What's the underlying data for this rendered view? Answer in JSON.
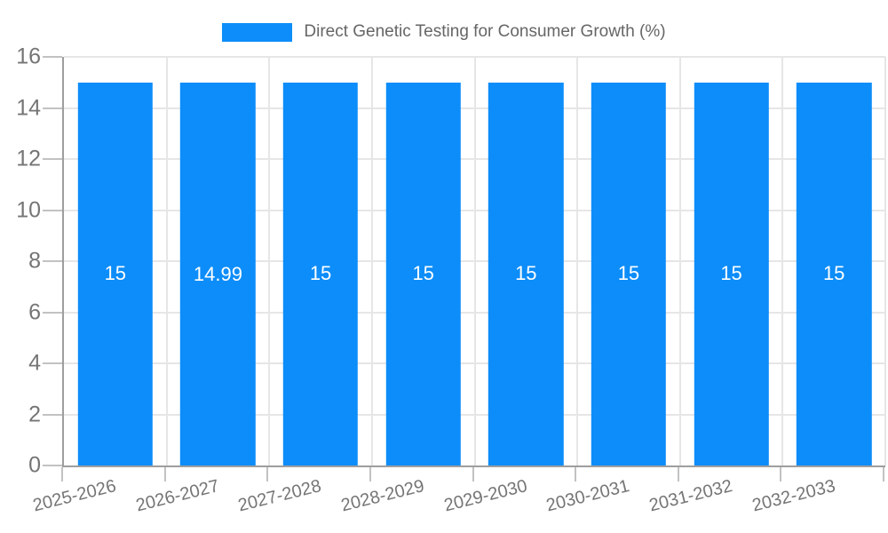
{
  "legend": {
    "label": "Direct Genetic Testing for Consumer Growth (%)",
    "swatch_color": "#0d8df9"
  },
  "chart_data": {
    "type": "bar",
    "title": "Direct Genetic Testing for Consumer Growth (%)",
    "categories": [
      "2025-2026",
      "2026-2027",
      "2027-2028",
      "2028-2029",
      "2029-2030",
      "2030-2031",
      "2031-2032",
      "2032-2033"
    ],
    "values": [
      15,
      14.99,
      15,
      15,
      15,
      15,
      15,
      15
    ],
    "bar_labels": [
      "15",
      "14.99",
      "15",
      "15",
      "15",
      "15",
      "15",
      "15"
    ],
    "xlabel": "",
    "ylabel": "",
    "ylim": [
      0,
      16
    ],
    "yticks": [
      0,
      2,
      4,
      6,
      8,
      10,
      12,
      14,
      16
    ],
    "grid": true,
    "legend_position": "top-center",
    "bar_color": "#0d8df9",
    "bar_label_color": "#ffffff",
    "axis_color": "#9e9e9e",
    "grid_color": "#e6e6e6",
    "tick_label_color": "#757575"
  }
}
